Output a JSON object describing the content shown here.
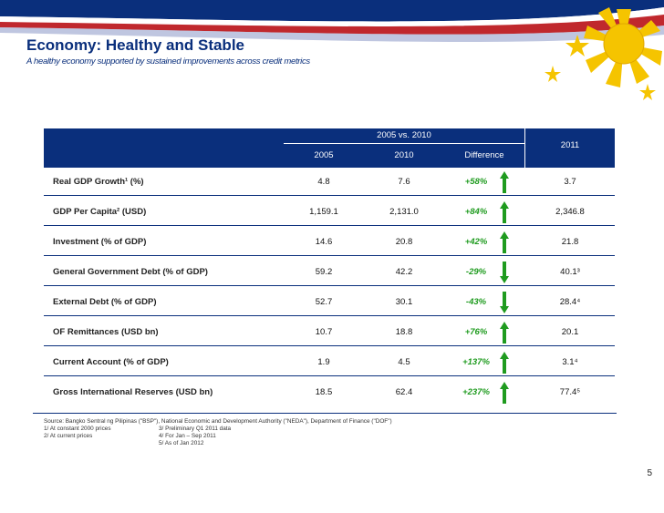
{
  "header": {
    "title": "Economy: Healthy and Stable",
    "subtitle": "A healthy economy supported by sustained improvements across credit metrics"
  },
  "table": {
    "group_header": "2005 vs. 2010",
    "col_2005": "2005",
    "col_2010": "2010",
    "col_diff": "Difference",
    "col_2011": "2011",
    "rows": [
      {
        "label": "Real GDP Growth¹ (%)",
        "v2005": "4.8",
        "v2010": "7.6",
        "diff": "+58%",
        "dir": "up",
        "v2011": "3.7"
      },
      {
        "label": "GDP Per Capita² (USD)",
        "v2005": "1,159.1",
        "v2010": "2,131.0",
        "diff": "+84%",
        "dir": "up",
        "v2011": "2,346.8"
      },
      {
        "label": "Investment (% of GDP)",
        "v2005": "14.6",
        "v2010": "20.8",
        "diff": "+42%",
        "dir": "up",
        "v2011": "21.8"
      },
      {
        "label": "General Government Debt (% of GDP)",
        "v2005": "59.2",
        "v2010": "42.2",
        "diff": "-29%",
        "dir": "down",
        "v2011": "40.1³"
      },
      {
        "label": "External Debt (% of GDP)",
        "v2005": "52.7",
        "v2010": "30.1",
        "diff": "-43%",
        "dir": "down",
        "v2011": "28.4⁴"
      },
      {
        "label": "OF Remittances (USD bn)",
        "v2005": "10.7",
        "v2010": "18.8",
        "diff": "+76%",
        "dir": "up",
        "v2011": "20.1"
      },
      {
        "label": "Current Account (% of GDP)",
        "v2005": "1.9",
        "v2010": "4.5",
        "diff": "+137%",
        "dir": "up",
        "v2011": "3.1⁴"
      },
      {
        "label": "Gross International Reserves (USD bn)",
        "v2005": "18.5",
        "v2010": "62.4",
        "diff": "+237%",
        "dir": "up",
        "v2011": "77.4⁵"
      }
    ]
  },
  "footnotes": {
    "source": "Source: Bangko Sentral ng Pilipinas (\"BSP\"), National Economic and Development Authority (\"NEDA\"), Department of Finance (\"DOF\")",
    "n1": "1/ At constant 2000 prices",
    "n2": "2/ At current prices",
    "n3": "3/ Preliminary Q1 2011 data",
    "n4": "4/ For Jan – Sep 2011",
    "n5": "5/ As of Jan 2012"
  },
  "page_number": "5",
  "colors": {
    "navy": "#0a2f7c",
    "green": "#1f9b1f",
    "red": "#c0282d",
    "gold": "#f5c400"
  }
}
